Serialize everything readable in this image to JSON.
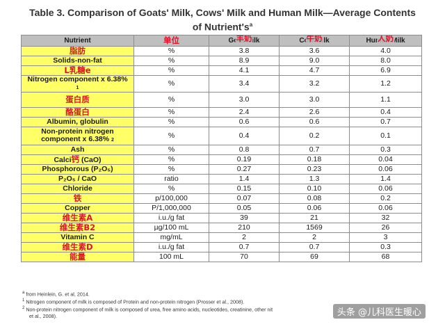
{
  "title": {
    "line1": "Table 3. Comparison of Goats' Milk, Cows' Milk and Human Milk—Average Contents",
    "line2": "of Nutrient's",
    "sup": "a"
  },
  "header": {
    "nutrient": "Nutrient",
    "unit_cn": "单位",
    "goat": "Goat Milk",
    "goat_cn": "羊奶",
    "cow": "Cow Milk",
    "cow_cn": "牛奶",
    "human": "Human Milk",
    "human_cn": "人奶"
  },
  "rows": [
    {
      "name": "脂肪",
      "unit": "%",
      "goat": "3.8",
      "cow": "3.6",
      "human": "4.0"
    },
    {
      "name": "Solids-non-fat",
      "unit": "%",
      "goat": "8.9",
      "cow": "9.0",
      "human": "8.0"
    },
    {
      "name": "L乳糖e",
      "unit": "%",
      "goat": "4.1",
      "cow": "4.7",
      "human": "6.9"
    },
    {
      "name": "Nitrogen component x 6.38%",
      "name_sup": "1",
      "unit": "%",
      "goat": "3.4",
      "cow": "3.2",
      "human": "1.2"
    },
    {
      "name": "蛋白质",
      "unit": "%",
      "goat": "3.0",
      "cow": "3.0",
      "human": "1.1"
    },
    {
      "name": "酪蛋白",
      "unit": "%",
      "goat": "2.4",
      "cow": "2.6",
      "human": "0.4"
    },
    {
      "name": "Albumin, globulin",
      "unit": "%",
      "goat": "0.6",
      "cow": "0.6",
      "human": "0.7"
    },
    {
      "name": "Non-protein nitrogen component x 6.38%",
      "name_sup": "2",
      "unit": "%",
      "goat": "0.4",
      "cow": "0.2",
      "human": "0.1"
    },
    {
      "name": "Ash",
      "unit": "%",
      "goat": "0.8",
      "cow": "0.7",
      "human": "0.3"
    },
    {
      "name_pre": "Calci",
      "name_cn": "钙",
      "name_post": " (CaO)",
      "unit": "%",
      "goat": "0.19",
      "cow": "0.18",
      "human": "0.04"
    },
    {
      "name": "Phosphorous (P₂O₅)",
      "unit": "%",
      "goat": "0.27",
      "cow": "0.23",
      "human": "0.06"
    },
    {
      "name": "P₂O₅ / CaO",
      "unit": "ratio",
      "goat": "1.4",
      "cow": "1.3",
      "human": "1.4"
    },
    {
      "name": "Chloride",
      "unit": "%",
      "goat": "0.15",
      "cow": "0.10",
      "human": "0.06"
    },
    {
      "name": "铁",
      "unit": "p/100,000",
      "goat": "0.07",
      "cow": "0.08",
      "human": "0.2"
    },
    {
      "name": "Copper",
      "unit": "P/1,000,000",
      "goat": "0.05",
      "cow": "0.06",
      "human": "0.06"
    },
    {
      "name": "维生素A",
      "unit": "i.u./g fat",
      "goat": "39",
      "cow": "21",
      "human": "32"
    },
    {
      "name": "维生素B2",
      "unit": "µg/100 mL",
      "goat": "210",
      "cow": "1569",
      "human": "26"
    },
    {
      "name": "Vitamin C",
      "unit": "mg/mL",
      "goat": "2",
      "cow": "2",
      "human": "3"
    },
    {
      "name": "维生素D",
      "unit": "i.u./g fat",
      "goat": "0.7",
      "cow": "0.7",
      "human": "0.3"
    },
    {
      "name": "能量",
      "unit": "100 mL",
      "goat": "70",
      "cow": "69",
      "human": "68"
    }
  ],
  "footnotes": {
    "a": {
      "mark": "a",
      "text": "from Heinlein, G. et al, 2014."
    },
    "n1": {
      "mark": "1",
      "text": "Nitrogen component of milk is composed of Protein and non-protein nitrogen (Prosser et al., 2008)."
    },
    "n2": {
      "mark": "2",
      "text": "Non-protein nitrogen component of milk is composed of urea, free amino acids, nucleotides, creatinine, other nit"
    },
    "n2_cont": "et al., 2008)."
  },
  "watermark": "头条 @儿科医生暖心"
}
